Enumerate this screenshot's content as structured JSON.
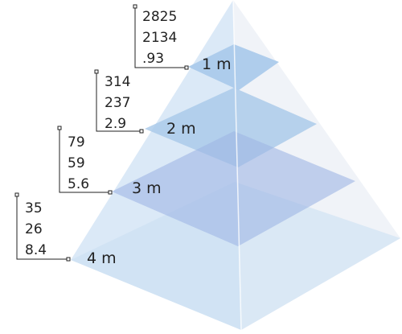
{
  "colors": {
    "face_left": "#cfe2f4",
    "face_right": "#eef2f7",
    "slice": "#9ec3e8",
    "slice_deep": "#8fa9df",
    "text": "#222222"
  },
  "levels": [
    {
      "label": "1 m",
      "values": [
        "2825",
        "2134",
        ".93"
      ]
    },
    {
      "label": "2 m",
      "values": [
        "314",
        "237",
        "2.9"
      ]
    },
    {
      "label": "3 m",
      "values": [
        "79",
        "59",
        "5.6"
      ]
    },
    {
      "label": "4 m",
      "values": [
        "35",
        "26",
        "8.4"
      ]
    }
  ]
}
